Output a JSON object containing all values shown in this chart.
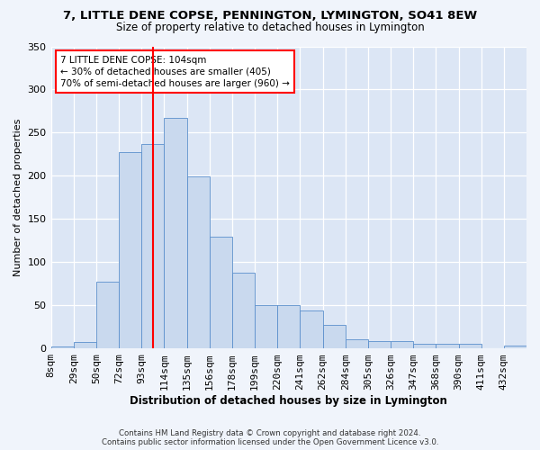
{
  "title": "7, LITTLE DENE COPSE, PENNINGTON, LYMINGTON, SO41 8EW",
  "subtitle": "Size of property relative to detached houses in Lymington",
  "xlabel": "Distribution of detached houses by size in Lymington",
  "ylabel": "Number of detached properties",
  "bar_fill": "#c9d9ee",
  "bar_edge": "#5b8fcc",
  "fig_bg": "#f0f4fb",
  "axes_bg": "#dce6f5",
  "grid_color": "#ffffff",
  "bin_labels": [
    "8sqm",
    "29sqm",
    "50sqm",
    "72sqm",
    "93sqm",
    "114sqm",
    "135sqm",
    "156sqm",
    "178sqm",
    "199sqm",
    "220sqm",
    "241sqm",
    "262sqm",
    "284sqm",
    "305sqm",
    "326sqm",
    "347sqm",
    "368sqm",
    "390sqm",
    "411sqm",
    "432sqm"
  ],
  "bar_heights": [
    2,
    7,
    77,
    227,
    237,
    267,
    199,
    129,
    88,
    50,
    50,
    44,
    27,
    11,
    9,
    9,
    5,
    5,
    5,
    0,
    3
  ],
  "vline_pos": 4.524,
  "ylim": [
    0,
    350
  ],
  "yticks": [
    0,
    50,
    100,
    150,
    200,
    250,
    300,
    350
  ],
  "annotation": "7 LITTLE DENE COPSE: 104sqm\n← 30% of detached houses are smaller (405)\n70% of semi-detached houses are larger (960) →",
  "footnote_line1": "Contains HM Land Registry data © Crown copyright and database right 2024.",
  "footnote_line2": "Contains public sector information licensed under the Open Government Licence v3.0."
}
